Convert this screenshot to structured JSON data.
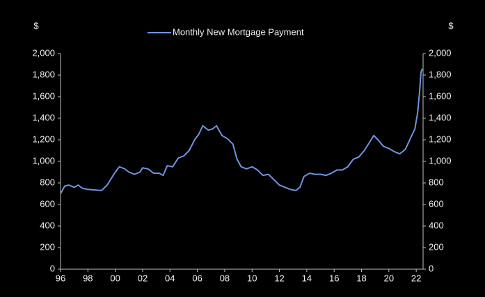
{
  "chart_data": {
    "type": "line",
    "legend": "top",
    "y_label": "$",
    "y2_label": "$",
    "xlim": [
      1996,
      2022.5
    ],
    "xticks": [
      {
        "value": 1996,
        "label": "96"
      },
      {
        "value": 1998,
        "label": "98"
      },
      {
        "value": 2000,
        "label": "00"
      },
      {
        "value": 2002,
        "label": "02"
      },
      {
        "value": 2004,
        "label": "04"
      },
      {
        "value": 2006,
        "label": "06"
      },
      {
        "value": 2008,
        "label": "08"
      },
      {
        "value": 2010,
        "label": "10"
      },
      {
        "value": 2012,
        "label": "12"
      },
      {
        "value": 2014,
        "label": "14"
      },
      {
        "value": 2016,
        "label": "16"
      },
      {
        "value": 2018,
        "label": "18"
      },
      {
        "value": 2020,
        "label": "20"
      },
      {
        "value": 2022,
        "label": "22"
      }
    ],
    "ylim": [
      0,
      2000
    ],
    "yticks": [
      0,
      200,
      400,
      600,
      800,
      {
        "value": 1000,
        "label": "1,000"
      },
      {
        "value": 1200,
        "label": "1,200"
      },
      {
        "value": 1400,
        "label": "1,400"
      },
      {
        "value": 1600,
        "label": "1,600"
      },
      {
        "value": 1800,
        "label": "1,800"
      },
      {
        "value": 2000,
        "label": "2,000"
      }
    ],
    "y2lim": [
      0,
      2000
    ],
    "y2ticks": [
      0,
      200,
      400,
      600,
      800,
      {
        "value": 1000,
        "label": "1,000"
      },
      {
        "value": 1200,
        "label": "1,200"
      },
      {
        "value": 1400,
        "label": "1,400"
      },
      {
        "value": 1600,
        "label": "1,600"
      },
      {
        "value": 1800,
        "label": "1,800"
      },
      {
        "value": 2000,
        "label": "2,000"
      }
    ],
    "x": [
      1996.0,
      1996.3,
      1996.6,
      1997.0,
      1997.3,
      1997.6,
      1998.0,
      1998.5,
      1999.0,
      1999.4,
      1999.8,
      2000.0,
      2000.3,
      2000.7,
      2001.0,
      2001.4,
      2001.8,
      2002.0,
      2002.4,
      2002.8,
      2003.2,
      2003.5,
      2003.8,
      2004.2,
      2004.6,
      2005.0,
      2005.4,
      2005.8,
      2006.1,
      2006.4,
      2006.8,
      2007.1,
      2007.4,
      2007.8,
      2008.2,
      2008.6,
      2008.9,
      2009.2,
      2009.6,
      2010.0,
      2010.4,
      2010.8,
      2011.2,
      2011.6,
      2012.0,
      2012.4,
      2012.8,
      2013.2,
      2013.5,
      2013.8,
      2014.2,
      2014.6,
      2015.0,
      2015.4,
      2015.8,
      2016.2,
      2016.6,
      2017.0,
      2017.4,
      2017.8,
      2018.2,
      2018.6,
      2018.9,
      2019.2,
      2019.6,
      2020.0,
      2020.4,
      2020.8,
      2021.2,
      2021.6,
      2021.9,
      2022.1,
      2022.25,
      2022.35,
      2022.45
    ],
    "series": [
      {
        "name": "Monthly New Mortgage Payment",
        "color": "#7094e0",
        "values": [
          700,
          770,
          780,
          760,
          780,
          750,
          740,
          735,
          730,
          780,
          860,
          900,
          950,
          930,
          900,
          880,
          900,
          940,
          930,
          890,
          890,
          870,
          960,
          950,
          1030,
          1050,
          1100,
          1200,
          1250,
          1330,
          1290,
          1300,
          1330,
          1240,
          1210,
          1160,
          1020,
          950,
          930,
          950,
          920,
          870,
          880,
          830,
          780,
          760,
          740,
          730,
          760,
          860,
          890,
          880,
          880,
          870,
          890,
          920,
          920,
          950,
          1020,
          1040,
          1100,
          1180,
          1240,
          1200,
          1140,
          1120,
          1090,
          1070,
          1110,
          1220,
          1300,
          1450,
          1650,
          1830,
          1860
        ]
      }
    ]
  }
}
